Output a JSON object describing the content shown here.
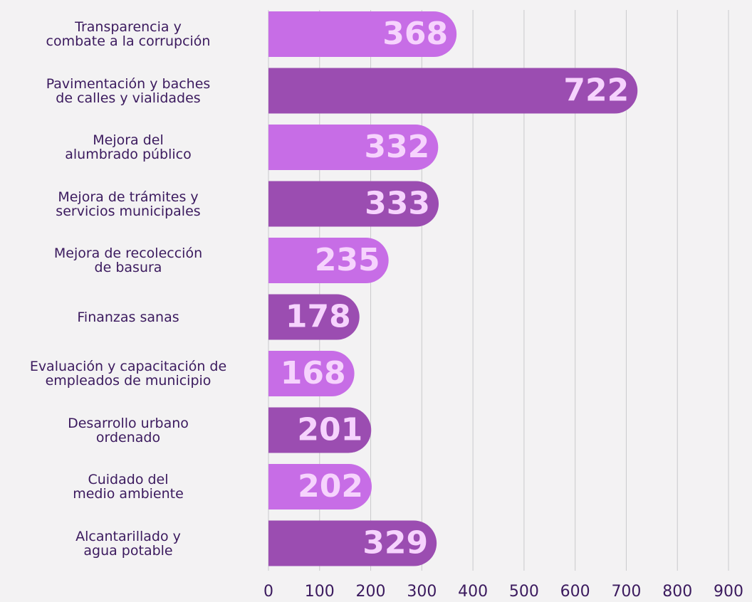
{
  "chart_data": {
    "type": "bar",
    "orientation": "horizontal",
    "categories": [
      "Transparencia y\ncombate a la corrupción",
      "Pavimentación y baches\nde calles y vialidades",
      "Mejora del\nalumbrado público",
      "Mejora de trámites y\nservicios municipales",
      "Mejora de recolección\nde basura",
      "Finanzas sanas",
      "Evaluación y capacitación de\nempleados de municipio",
      "Desarrollo urbano\nordenado",
      "Cuidado del\nmedio ambiente",
      "Alcantarillado y\nagua potable"
    ],
    "values": [
      368,
      722,
      332,
      333,
      235,
      178,
      168,
      201,
      202,
      329
    ],
    "colors": [
      "#c76de6",
      "#9b4db1",
      "#c76de6",
      "#9b4db1",
      "#c76de6",
      "#9b4db1",
      "#c76de6",
      "#9b4db1",
      "#c76de6",
      "#9b4db1"
    ],
    "xlim": [
      0,
      900
    ],
    "xticks": [
      0,
      100,
      200,
      300,
      400,
      500,
      600,
      700,
      800,
      900
    ],
    "grid": true
  }
}
